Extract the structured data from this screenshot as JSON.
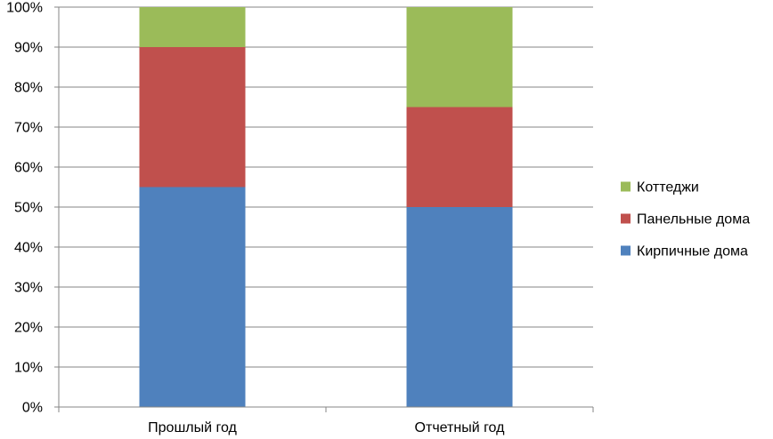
{
  "chart_data": {
    "type": "bar",
    "stacked": true,
    "percent_stacked": true,
    "categories": [
      "Прошлый год",
      "Отчетный год"
    ],
    "series": [
      {
        "name": "Кирпичные дома",
        "values": [
          55,
          50
        ],
        "color": "#4f81bd"
      },
      {
        "name": "Панельные дома",
        "values": [
          35,
          25
        ],
        "color": "#c0504d"
      },
      {
        "name": "Коттеджи",
        "values": [
          10,
          25
        ],
        "color": "#9bbb59"
      }
    ],
    "ylim": [
      0,
      100
    ],
    "yticks": [
      "0%",
      "10%",
      "20%",
      "30%",
      "40%",
      "50%",
      "60%",
      "70%",
      "80%",
      "90%",
      "100%"
    ],
    "grid": true,
    "legend_position": "right",
    "legend_order": [
      "Коттеджи",
      "Панельные дома",
      "Кирпичные дома"
    ],
    "gridline_color": "#868686",
    "axis_color": "#868686"
  }
}
